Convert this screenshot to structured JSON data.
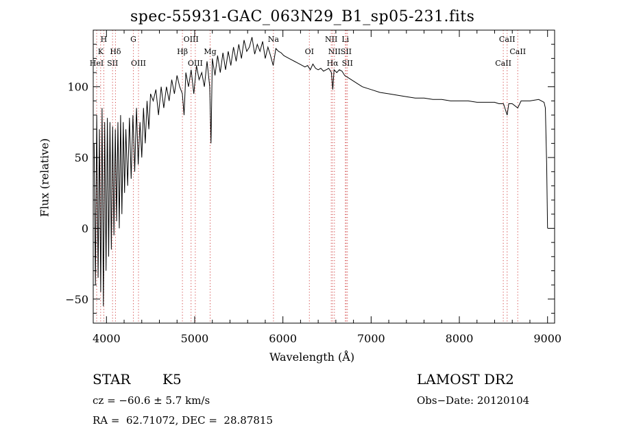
{
  "chart_data": {
    "type": "line",
    "title": "spec-55931-GAC_063N29_B1_sp05-231.fits",
    "xlabel": "Wavelength (Å)",
    "ylabel": "Flux (relative)",
    "xlim": [
      3850,
      9080
    ],
    "ylim": [
      -67,
      140
    ],
    "xticks": [
      4000,
      5000,
      6000,
      7000,
      8000,
      9000
    ],
    "yticks": [
      -50,
      0,
      50,
      100
    ],
    "grid": false,
    "series": [
      {
        "x": [
          3860,
          3875,
          3890,
          3905,
          3920,
          3935,
          3950,
          3965,
          3980,
          3995,
          4010,
          4025,
          4040,
          4055,
          4070,
          4085,
          4100,
          4115,
          4130,
          4145,
          4160,
          4175,
          4190,
          4205,
          4220,
          4240,
          4260,
          4280,
          4300,
          4320,
          4340,
          4360,
          4380,
          4400,
          4420,
          4440,
          4460,
          4480,
          4500,
          4530,
          4560,
          4590,
          4620,
          4650,
          4680,
          4710,
          4740,
          4770,
          4800,
          4830,
          4860,
          4880,
          4900,
          4930,
          4960,
          4990,
          5020,
          5050,
          5080,
          5110,
          5140,
          5170,
          5185,
          5200,
          5230,
          5260,
          5290,
          5320,
          5350,
          5380,
          5410,
          5440,
          5470,
          5500,
          5530,
          5560,
          5590,
          5620,
          5650,
          5680,
          5710,
          5740,
          5770,
          5800,
          5830,
          5860,
          5890,
          5920,
          5950,
          5980,
          6010,
          6040,
          6070,
          6100,
          6130,
          6160,
          6190,
          6220,
          6250,
          6280,
          6310,
          6340,
          6370,
          6400,
          6430,
          6460,
          6490,
          6520,
          6550,
          6565,
          6580,
          6610,
          6640,
          6670,
          6700,
          6750,
          6800,
          6850,
          6900,
          6950,
          7000,
          7100,
          7200,
          7300,
          7400,
          7500,
          7600,
          7700,
          7800,
          7900,
          8000,
          8100,
          8200,
          8300,
          8400,
          8450,
          8500,
          8542,
          8560,
          8600,
          8662,
          8700,
          8800,
          8900,
          8960,
          8975,
          8990,
          9000
        ],
        "y": [
          60,
          -40,
          80,
          -35,
          70,
          -45,
          85,
          -55,
          75,
          -30,
          78,
          -20,
          75,
          -15,
          72,
          -5,
          70,
          5,
          75,
          0,
          80,
          10,
          75,
          25,
          70,
          30,
          78,
          35,
          80,
          40,
          85,
          45,
          75,
          50,
          85,
          60,
          90,
          70,
          95,
          90,
          98,
          80,
          100,
          85,
          100,
          90,
          105,
          95,
          108,
          100,
          95,
          80,
          110,
          100,
          112,
          95,
          115,
          105,
          110,
          100,
          118,
          100,
          60,
          120,
          108,
          122,
          110,
          124,
          112,
          125,
          115,
          128,
          118,
          130,
          120,
          133,
          125,
          128,
          135,
          123,
          130,
          125,
          132,
          120,
          128,
          122,
          115,
          127,
          125,
          124,
          122,
          121,
          120,
          119,
          118,
          117,
          116,
          115,
          114,
          115,
          112,
          116,
          113,
          112,
          113,
          111,
          112,
          113,
          110,
          98,
          112,
          110,
          112,
          111,
          108,
          106,
          104,
          102,
          100,
          99,
          98,
          96,
          95,
          94,
          93,
          92,
          92,
          91,
          91,
          90,
          90,
          90,
          89,
          89,
          89,
          88,
          88,
          80,
          88,
          88,
          85,
          90,
          90,
          91,
          89,
          85,
          45,
          0
        ]
      }
    ],
    "lines": [
      {
        "label": "H",
        "x": 3970,
        "row": 1
      },
      {
        "label": "K",
        "x": 3934,
        "row": 2
      },
      {
        "label": "HeI",
        "x": 3889,
        "row": 3
      },
      {
        "label": "Hδ",
        "x": 4102,
        "row": 2
      },
      {
        "label": "SII",
        "x": 4069,
        "row": 3
      },
      {
        "label": "G",
        "x": 4305,
        "row": 1
      },
      {
        "label": "OIII",
        "x": 4363,
        "row": 3
      },
      {
        "label": "OIII",
        "x": 4959,
        "row": 1
      },
      {
        "label": "Hβ",
        "x": 4861,
        "row": 2
      },
      {
        "label": "OIII",
        "x": 5007,
        "row": 3
      },
      {
        "label": "Mg",
        "x": 5175,
        "row": 2
      },
      {
        "label": "Na",
        "x": 5893,
        "row": 1
      },
      {
        "label": "OI",
        "x": 6300,
        "row": 2
      },
      {
        "label": "NII",
        "x": 6548,
        "row": 1
      },
      {
        "label": "Li",
        "x": 6708,
        "row": 1
      },
      {
        "label": "NII",
        "x": 6584,
        "row": 2
      },
      {
        "label": "SII",
        "x": 6717,
        "row": 2
      },
      {
        "label": "Hα",
        "x": 6563,
        "row": 3
      },
      {
        "label": "SII",
        "x": 6731,
        "row": 3
      },
      {
        "label": "CaII",
        "x": 8542,
        "row": 1
      },
      {
        "label": "CaII",
        "x": 8662,
        "row": 2
      },
      {
        "label": "CaII",
        "x": 8498,
        "row": 3
      }
    ]
  },
  "info": {
    "object_type": "STAR",
    "subclass": "K5",
    "survey": "LAMOST DR2",
    "cz": "cz = −60.6 ± 5.7 km/s",
    "obs_date": "Obs−Date: 20120104",
    "coords": "RA =  62.71072, DEC =  28.87815"
  }
}
